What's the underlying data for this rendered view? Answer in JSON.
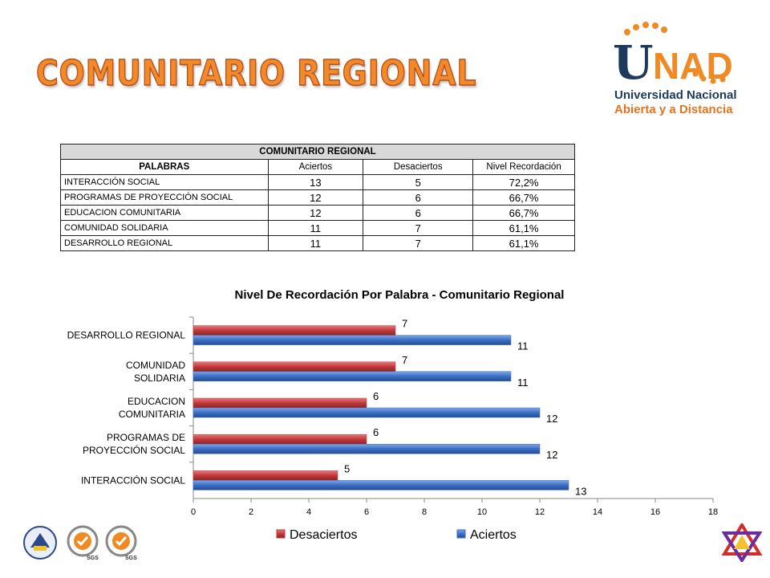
{
  "slide": {
    "title": "COMUNITARIO REGIONAL"
  },
  "logo": {
    "wordmark": "UNAD",
    "line1": "Universidad Nacional",
    "line2": "Abierta y a Distancia",
    "accent": "#f08a24",
    "navy": "#1b3a5c"
  },
  "table": {
    "caption": "COMUNITARIO REGIONAL",
    "headers": [
      "PALABRAS",
      "Aciertos",
      "Desaciertos",
      "Nivel  Recordación"
    ],
    "rows": [
      [
        "INTERACCIÓN SOCIAL",
        "13",
        "5",
        "72,2%"
      ],
      [
        "PROGRAMAS DE PROYECCIÓN SOCIAL",
        "12",
        "6",
        "66,7%"
      ],
      [
        "EDUCACION COMUNITARIA",
        "12",
        "6",
        "66,7%"
      ],
      [
        "COMUNIDAD SOLIDARIA",
        "11",
        "7",
        "61,1%"
      ],
      [
        "DESARROLLO REGIONAL",
        "11",
        "7",
        "61,1%"
      ]
    ]
  },
  "chart_data": {
    "type": "bar",
    "orientation": "horizontal",
    "title": "Nivel De Recordación Por Palabra  -  Comunitario Regional",
    "categories": [
      [
        "DESARROLLO REGIONAL"
      ],
      [
        "COMUNIDAD",
        "SOLIDARIA"
      ],
      [
        "EDUCACION",
        "COMUNITARIA"
      ],
      [
        "PROGRAMAS DE",
        "PROYECCIÓN SOCIAL"
      ],
      [
        "INTERACCIÓN SOCIAL"
      ]
    ],
    "series": [
      {
        "name": "Desaciertos",
        "values": [
          7,
          7,
          6,
          6,
          5
        ],
        "color": "#c0393b"
      },
      {
        "name": "Aciertos",
        "values": [
          11,
          11,
          12,
          12,
          13
        ],
        "color": "#3a6fc4"
      }
    ],
    "xlim": [
      0,
      18
    ],
    "xticks": [
      "0",
      "2",
      "4",
      "6",
      "8",
      "10",
      "12",
      "14",
      "16",
      "18"
    ],
    "legend": "bottom",
    "grid": false
  },
  "footer": {
    "seal_text_1": "SGS",
    "seal_text_2": "SGS"
  }
}
